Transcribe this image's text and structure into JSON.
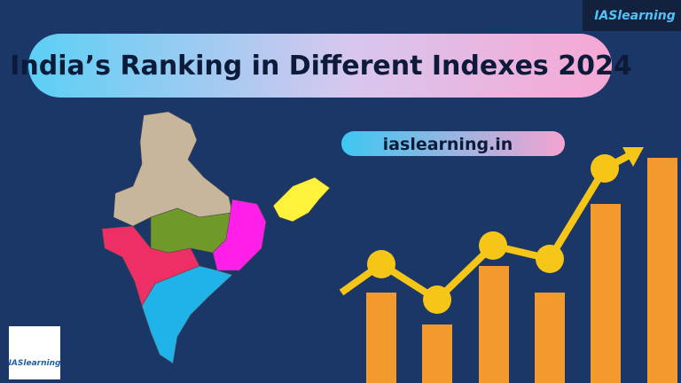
{
  "header": {
    "title": "India’s Ranking in Different Indexes 2024",
    "website": "iaslearning.in"
  },
  "logo": {
    "name": "IASlearning"
  }
}
